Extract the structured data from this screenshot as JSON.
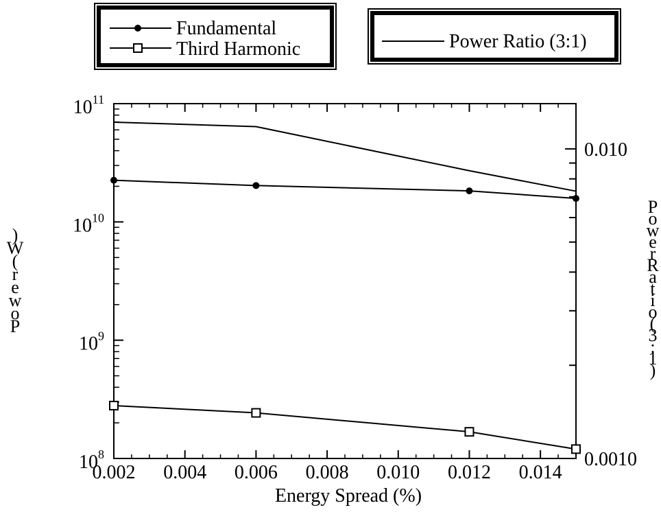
{
  "chart_data": {
    "type": "line",
    "title": "",
    "xlabel": "Energy Spread (%)",
    "ylabel_left_chars": [
      "P",
      "o",
      "w",
      "e",
      "r",
      "(",
      "W",
      ")"
    ],
    "ylabel_right_chars": [
      "P",
      "o",
      "w",
      "e",
      "r",
      "R",
      "a",
      "t",
      "i",
      "o",
      "(",
      "3",
      ":",
      "1",
      ")"
    ],
    "x": [
      0.002,
      0.006,
      0.012,
      0.015
    ],
    "xlim": [
      0.002,
      0.015
    ],
    "x_ticks": [
      0.002,
      0.004,
      0.006,
      0.008,
      0.01,
      0.012,
      0.014
    ],
    "x_tick_labels": [
      "0.002",
      "0.004",
      "0.006",
      "0.008",
      "0.010",
      "0.012",
      "0.014"
    ],
    "ylim_left": [
      100000000,
      100000000000
    ],
    "yscale_left": "log",
    "y_left_tick_labels": [
      {
        "base": "10",
        "exp": "8"
      },
      {
        "base": "10",
        "exp": "9"
      },
      {
        "base": "10",
        "exp": "10"
      },
      {
        "base": "10",
        "exp": "11"
      }
    ],
    "ylim_right": [
      0.001,
      0.014
    ],
    "yscale_right": "log",
    "y_right_tick_labels": [
      {
        "value": 0.001,
        "label": "0.0010"
      },
      {
        "value": 0.01,
        "label": "0.010"
      }
    ],
    "series": [
      {
        "name": "Fundamental",
        "axis": "left",
        "marker": "filled-circle",
        "values": [
          22500000000,
          20300000000,
          18300000000,
          15800000000
        ]
      },
      {
        "name": "Third Harmonic",
        "axis": "left",
        "marker": "open-square",
        "values": [
          280000000,
          243000000,
          168000000,
          120000000
        ]
      },
      {
        "name": "Power Ratio (3:1)",
        "axis": "right",
        "marker": "none",
        "values": [
          0.0122,
          0.0118,
          0.0085,
          0.0073
        ]
      }
    ],
    "legend": {
      "left_box": [
        "Fundamental",
        "Third Harmonic"
      ],
      "right_box": [
        "Power Ratio (3:1)"
      ],
      "placement": "top"
    },
    "grid": false,
    "colors": {
      "line": "#000000",
      "background": "#ffffff"
    }
  }
}
